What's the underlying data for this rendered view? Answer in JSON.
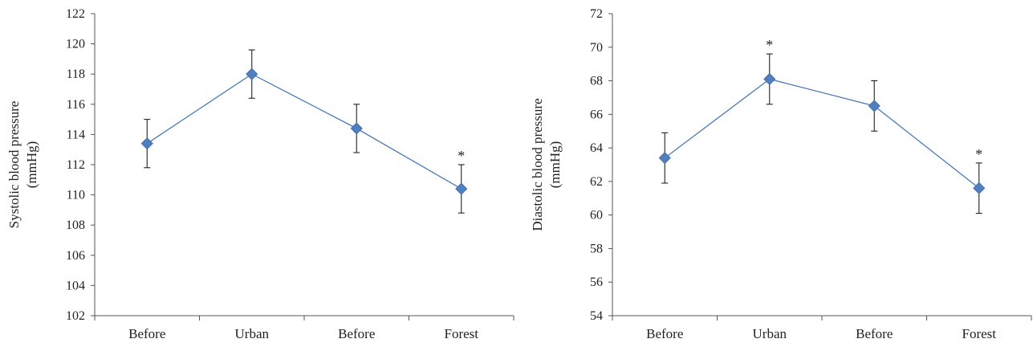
{
  "chart_data": [
    {
      "type": "line",
      "ylabel_lines": [
        "Systolic blood pressure",
        "(mmHg)"
      ],
      "categories": [
        "Before",
        "Urban",
        "Before",
        "Forest"
      ],
      "values": [
        113.4,
        118.0,
        114.4,
        110.4
      ],
      "error": [
        1.6,
        1.6,
        1.6,
        1.6
      ],
      "significance": [
        "",
        "",
        "",
        "*"
      ],
      "ylim": [
        102,
        122
      ],
      "ytick_step": 2,
      "grid": false,
      "legend": "none"
    },
    {
      "type": "line",
      "ylabel_lines": [
        "Diastolic blood pressure",
        "(mmHg)"
      ],
      "categories": [
        "Before",
        "Urban",
        "Before",
        "Forest"
      ],
      "values": [
        63.4,
        68.1,
        66.5,
        61.6
      ],
      "error": [
        1.5,
        1.5,
        1.5,
        1.5
      ],
      "significance": [
        "",
        "*",
        "",
        "*"
      ],
      "ylim": [
        54,
        72
      ],
      "ytick_step": 2,
      "grid": false,
      "legend": "none"
    }
  ],
  "colors": {
    "series": "#4a7ab8",
    "marker": "#4f7fbf",
    "error_bar": "#222222",
    "axis": "#555555"
  }
}
